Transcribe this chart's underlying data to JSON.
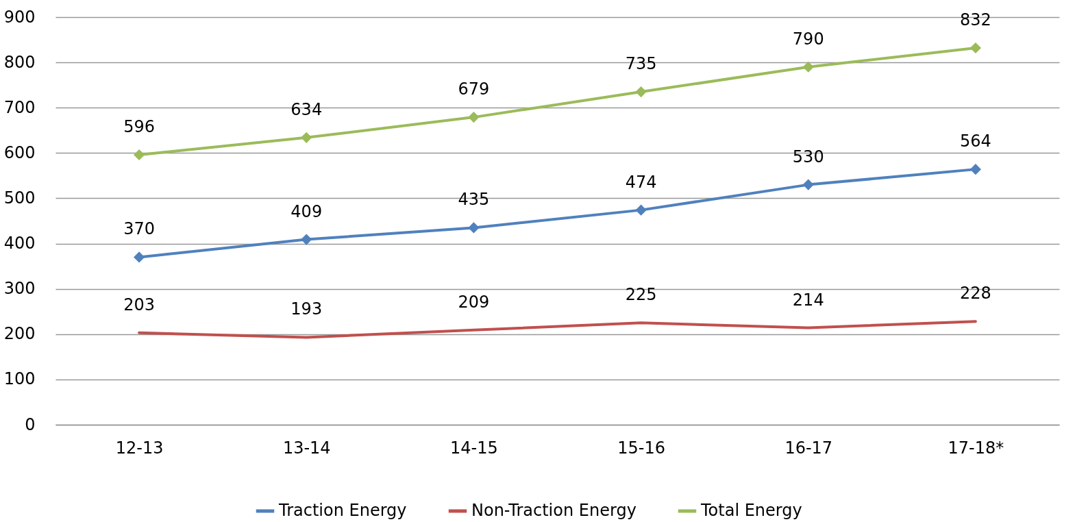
{
  "chart_data": {
    "type": "line",
    "categories": [
      "12-13",
      "13-14",
      "14-15",
      "15-16",
      "16-17",
      "17-18*"
    ],
    "series": [
      {
        "name": "Traction Energy",
        "color": "#4f81bd",
        "marker": "diamond",
        "values": [
          370,
          409,
          435,
          474,
          530,
          564
        ]
      },
      {
        "name": "Non-Traction Energy",
        "color": "#c0504d",
        "marker": "none",
        "values": [
          203,
          193,
          209,
          225,
          214,
          228
        ]
      },
      {
        "name": "Total Energy",
        "color": "#9bbb59",
        "marker": "diamond",
        "values": [
          596,
          634,
          679,
          735,
          790,
          832
        ]
      }
    ],
    "ylim": [
      0,
      900
    ],
    "yticks": [
      0,
      100,
      200,
      300,
      400,
      500,
      600,
      700,
      800,
      900
    ],
    "grid": "y",
    "legend": "bottom",
    "data_labels": true
  }
}
